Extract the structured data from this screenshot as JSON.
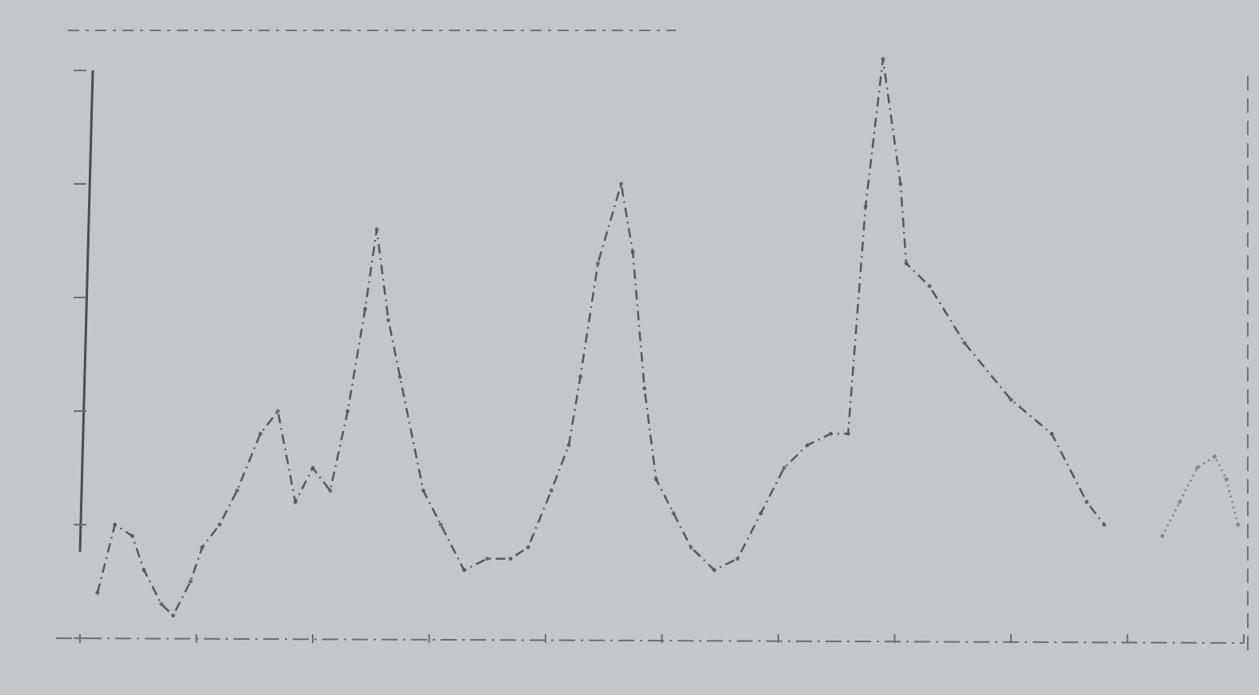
{
  "chart_data": {
    "type": "line",
    "title": "",
    "xlabel": "",
    "ylabel": "",
    "xlim": [
      0,
      100
    ],
    "ylim": [
      0,
      5
    ],
    "grid": false,
    "series": [
      {
        "style": "dashed",
        "color": "#55585c",
        "points": [
          [
            1.5,
            0.4
          ],
          [
            3,
            1.0
          ],
          [
            4.5,
            0.9
          ],
          [
            5.5,
            0.6
          ],
          [
            7,
            0.3
          ],
          [
            8,
            0.2
          ],
          [
            9.5,
            0.5
          ],
          [
            10.5,
            0.8
          ],
          [
            12,
            1.0
          ],
          [
            13.5,
            1.3
          ],
          [
            15.5,
            1.8
          ],
          [
            17,
            2.0
          ],
          [
            18.5,
            1.2
          ],
          [
            20,
            1.5
          ],
          [
            21.5,
            1.3
          ],
          [
            23,
            2.0
          ],
          [
            24.5,
            2.9
          ],
          [
            25.5,
            3.6
          ],
          [
            26.5,
            2.8
          ],
          [
            27.5,
            2.3
          ],
          [
            29.5,
            1.3
          ],
          [
            31,
            1.0
          ],
          [
            33,
            0.6
          ],
          [
            35,
            0.7
          ],
          [
            37,
            0.7
          ],
          [
            38.5,
            0.8
          ],
          [
            40.5,
            1.3
          ],
          [
            42,
            1.7
          ],
          [
            43,
            2.3
          ],
          [
            44.5,
            3.3
          ],
          [
            46.5,
            4.0
          ],
          [
            47.5,
            3.4
          ],
          [
            48.5,
            2.2
          ],
          [
            49.5,
            1.4
          ],
          [
            51,
            1.1
          ],
          [
            52.5,
            0.8
          ],
          [
            54.5,
            0.6
          ],
          [
            56.5,
            0.7
          ],
          [
            58.5,
            1.1
          ],
          [
            60.5,
            1.5
          ],
          [
            62.5,
            1.7
          ],
          [
            64.5,
            1.8
          ],
          [
            66,
            1.8
          ],
          [
            67.5,
            3.8
          ],
          [
            69,
            5.1
          ],
          [
            70.5,
            4.0
          ],
          [
            71,
            3.3
          ],
          [
            73,
            3.1
          ],
          [
            76,
            2.6
          ],
          [
            80,
            2.1
          ],
          [
            83.5,
            1.8
          ],
          [
            86.5,
            1.2
          ],
          [
            88,
            1.0
          ]
        ]
      },
      {
        "style": "dotted",
        "color": "#7a7d81",
        "points": [
          [
            93,
            0.9
          ],
          [
            94.5,
            1.2
          ],
          [
            96,
            1.5
          ],
          [
            97.5,
            1.6
          ],
          [
            98.5,
            1.4
          ],
          [
            99.5,
            1.0
          ]
        ]
      }
    ]
  }
}
